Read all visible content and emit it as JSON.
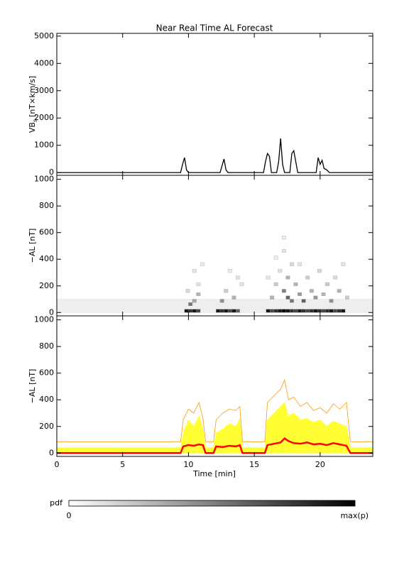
{
  "chart_data": [
    {
      "type": "line",
      "title": "Near Real Time AL Forecast",
      "ylabel_main": "VB",
      "ylabel_sub": "s",
      "ylabel_unit": "[nT×km/s]",
      "xlim": [
        0,
        24
      ],
      "ylim": [
        -100,
        5100
      ],
      "yticks": [
        0,
        1000,
        2000,
        3000,
        4000,
        5000
      ],
      "x": [
        0,
        9.4,
        9.55,
        9.7,
        9.85,
        10,
        12.4,
        12.55,
        12.7,
        12.85,
        13,
        15.7,
        15.85,
        16,
        16.15,
        16.3,
        16.7,
        16.85,
        17,
        17.15,
        17.3,
        17.7,
        17.85,
        18,
        18.15,
        18.3,
        19.7,
        19.85,
        20,
        20.15,
        20.3,
        20.5,
        20.7,
        24
      ],
      "series": [
        {
          "color": "#000000",
          "values": [
            0,
            0,
            300,
            550,
            100,
            0,
            0,
            250,
            500,
            100,
            0,
            0,
            400,
            700,
            600,
            0,
            0,
            400,
            1250,
            300,
            0,
            0,
            700,
            800,
            400,
            0,
            0,
            550,
            300,
            450,
            150,
            100,
            0,
            0
          ]
        }
      ]
    },
    {
      "type": "heatmap",
      "ylabel": "−AL [nT]",
      "color": "#000000",
      "xlim": [
        0,
        24
      ],
      "ylim": [
        -25,
        1030
      ],
      "yticks": [
        0,
        200,
        400,
        600,
        800,
        1000
      ],
      "cell_width": 0.3,
      "cell_height": 25,
      "cell_x": [
        9.7,
        10,
        10.3,
        10.6,
        12.1,
        12.4,
        12.7,
        13,
        13.3,
        13.6,
        15.9,
        16.2,
        16.5,
        16.8,
        17.1,
        17.4,
        17.7,
        18,
        18.3,
        18.6,
        18.9,
        19.2,
        19.5,
        19.8,
        20.1,
        20.4,
        20.7,
        21,
        21.3,
        21.6,
        10,
        10.3,
        9.8,
        10.6,
        10.3,
        10.9,
        10.6,
        12.4,
        12.7,
        13.3,
        13.6,
        13,
        13.9,
        16.2,
        16.5,
        16.8,
        17.1,
        17.1,
        17.4,
        17.4,
        17.1,
        17.7,
        17.7,
        18,
        18.3,
        18.6,
        18.9,
        19.2,
        19.5,
        19.8,
        20.1,
        20.4,
        20.7,
        21,
        21.3,
        21.6,
        21.9,
        16.5,
        18.3,
        15.9
      ],
      "cell_y": [
        0,
        0,
        0,
        0,
        0,
        0,
        0,
        0,
        0,
        0,
        0,
        0,
        0,
        0,
        0,
        0,
        0,
        0,
        0,
        0,
        0,
        0,
        0,
        0,
        0,
        0,
        0,
        0,
        0,
        0,
        50,
        75,
        150,
        200,
        300,
        350,
        125,
        75,
        150,
        100,
        250,
        300,
        200,
        100,
        200,
        300,
        450,
        150,
        100,
        250,
        550,
        350,
        75,
        200,
        125,
        75,
        250,
        150,
        100,
        300,
        125,
        200,
        75,
        250,
        150,
        350,
        100,
        400,
        350,
        250
      ],
      "cell_p": [
        0.9,
        0.8,
        0.9,
        0.7,
        0.9,
        0.8,
        0.9,
        0.7,
        0.9,
        0.6,
        0.9,
        0.7,
        0.8,
        0.9,
        1,
        0.9,
        0.8,
        0.7,
        0.9,
        0.8,
        0.7,
        0.8,
        0.9,
        0.8,
        0.7,
        0.8,
        0.9,
        0.7,
        0.8,
        0.9,
        0.5,
        0.3,
        0.15,
        0.1,
        0.1,
        0.08,
        0.3,
        0.4,
        0.2,
        0.3,
        0.1,
        0.08,
        0.1,
        0.3,
        0.2,
        0.12,
        0.1,
        0.5,
        0.6,
        0.3,
        0.08,
        0.15,
        0.5,
        0.3,
        0.4,
        0.6,
        0.2,
        0.3,
        0.4,
        0.15,
        0.3,
        0.2,
        0.4,
        0.15,
        0.3,
        0.1,
        0.2,
        0.08,
        0.1,
        0.1
      ]
    },
    {
      "type": "quantile",
      "ylabel": "−AL [nT]",
      "xlabel": "Time [min]",
      "xlim": [
        0,
        24
      ],
      "xticks": [
        0,
        5,
        10,
        15,
        20
      ],
      "ylim": [
        -25,
        1030
      ],
      "yticks": [
        0,
        200,
        400,
        600,
        800,
        1000
      ],
      "x": [
        0,
        9.4,
        9.6,
        10,
        10.4,
        10.8,
        11.1,
        11.3,
        11.9,
        12.1,
        12.6,
        13.1,
        13.6,
        13.9,
        14.1,
        15.8,
        16,
        16.5,
        17,
        17.3,
        17.6,
        18,
        18.5,
        19,
        19.5,
        20,
        20.5,
        21,
        21.5,
        22,
        22.3,
        22.5,
        24
      ],
      "series": [
        {
          "color": "#ffff33",
          "fill": true,
          "values": [
            40,
            40,
            150,
            250,
            200,
            280,
            180,
            40,
            40,
            150,
            180,
            220,
            200,
            260,
            40,
            40,
            250,
            300,
            350,
            380,
            280,
            300,
            250,
            260,
            230,
            250,
            200,
            240,
            220,
            200,
            40,
            40,
            40
          ]
        },
        {
          "color": "#ff9900",
          "values": [
            85,
            85,
            250,
            330,
            300,
            380,
            260,
            85,
            85,
            250,
            300,
            330,
            320,
            350,
            85,
            85,
            380,
            430,
            480,
            550,
            400,
            420,
            350,
            380,
            320,
            340,
            300,
            370,
            330,
            380,
            85,
            85,
            85
          ]
        },
        {
          "color": "#ff0000",
          "width": 2.5,
          "values": [
            0,
            0,
            50,
            60,
            55,
            65,
            60,
            0,
            0,
            50,
            45,
            55,
            50,
            60,
            0,
            0,
            60,
            70,
            80,
            110,
            90,
            75,
            70,
            80,
            65,
            70,
            60,
            75,
            65,
            55,
            0,
            0,
            0
          ]
        }
      ]
    }
  ],
  "colorbar": {
    "label": "pdf",
    "min_label": "0",
    "max_label": "max(p)"
  }
}
